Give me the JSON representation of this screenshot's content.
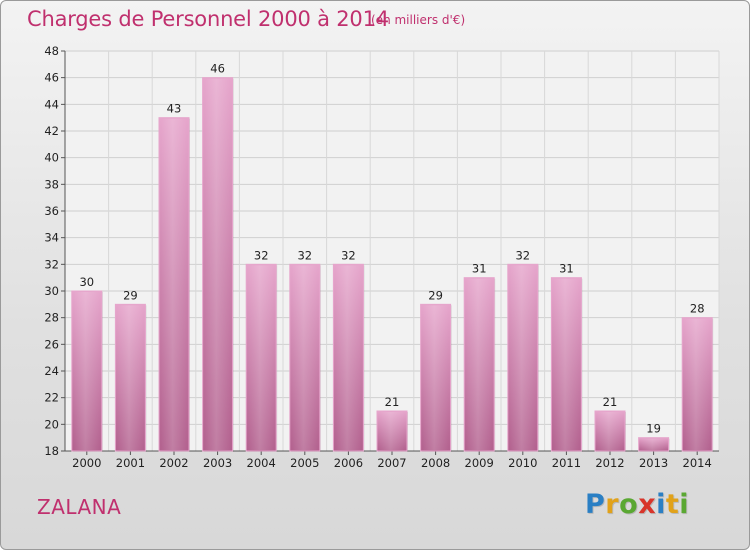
{
  "title": "Charges de Personnel 2000 à 2014",
  "subtitle": "(en milliers d'€)",
  "commune": "ZALANA",
  "logo": {
    "letters": [
      "P",
      "r",
      "o",
      "x",
      "i",
      "t",
      "i"
    ],
    "colors": [
      "#2a7fc4",
      "#e1a21a",
      "#5aa832",
      "#d8352a",
      "#2a7fc4",
      "#e1a21a",
      "#5aa832"
    ]
  },
  "colors": {
    "accent": "#c0306e",
    "bar_top": "#e6a6cc",
    "bar_bottom": "#b3628f"
  },
  "chart_data": {
    "type": "bar",
    "categories": [
      "2000",
      "2001",
      "2002",
      "2003",
      "2004",
      "2005",
      "2006",
      "2007",
      "2008",
      "2009",
      "2010",
      "2011",
      "2012",
      "2013",
      "2014"
    ],
    "values": [
      30,
      29,
      43,
      46,
      32,
      32,
      32,
      21,
      29,
      31,
      32,
      31,
      21,
      19,
      28
    ],
    "ylim": [
      18,
      48
    ],
    "yticks": [
      18,
      20,
      22,
      24,
      26,
      28,
      30,
      32,
      34,
      36,
      38,
      40,
      42,
      44,
      46,
      48
    ],
    "grid": true,
    "xlabel": "",
    "ylabel": ""
  }
}
